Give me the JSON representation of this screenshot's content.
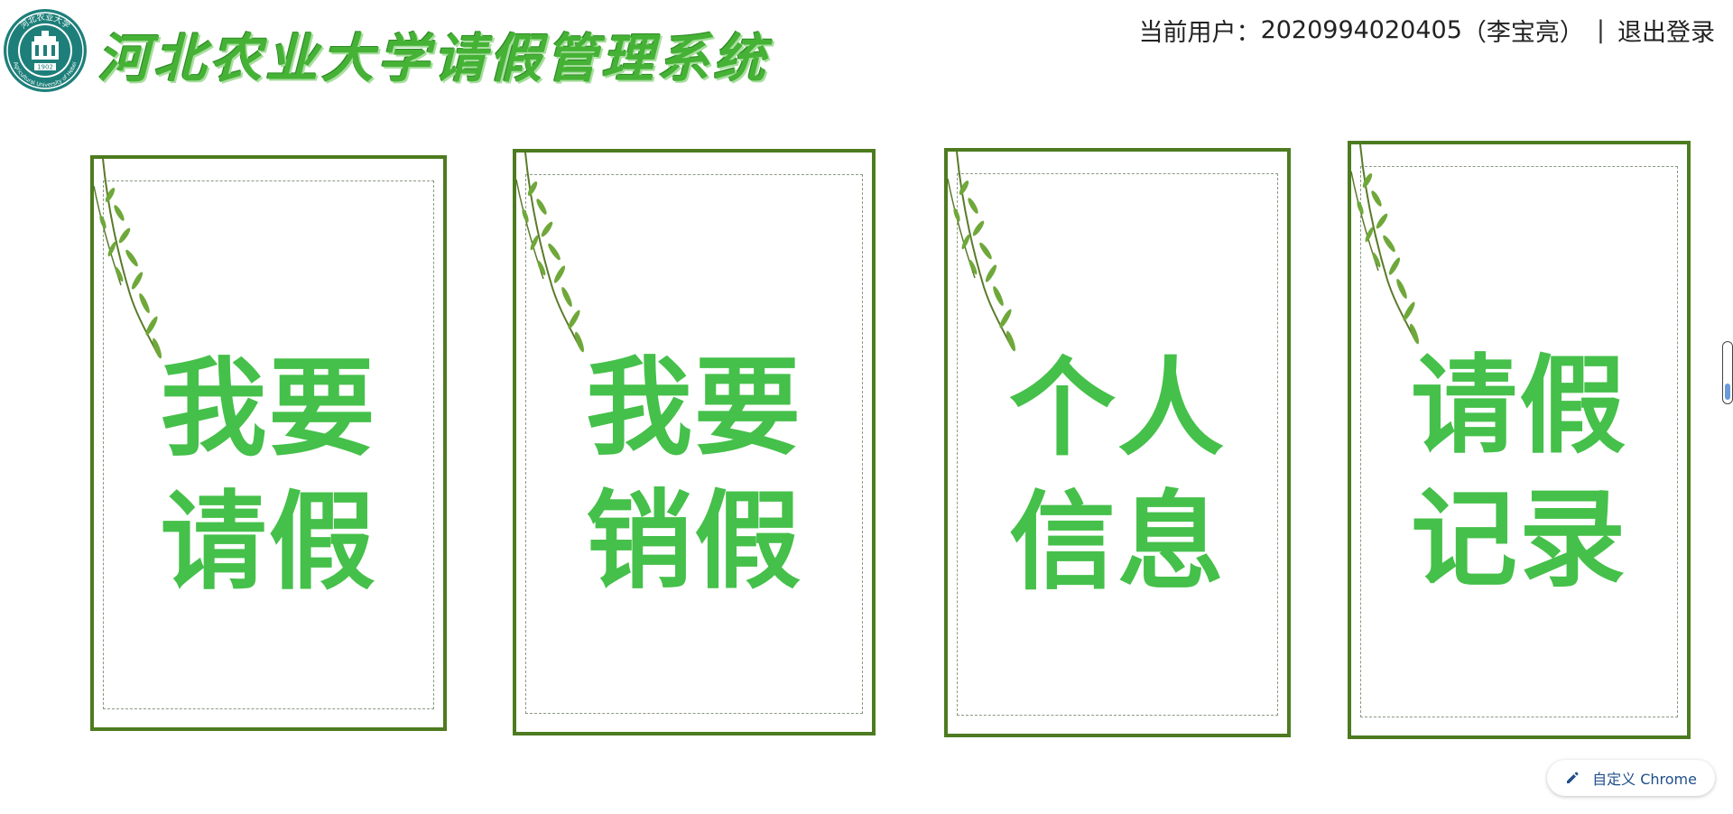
{
  "header": {
    "logo_text_top": "河北农业大学",
    "logo_text_bottom": "Agricultural University of Hebei",
    "logo_year": "1902",
    "site_title": "河北农业大学请假管理系统",
    "user_prefix": "当前用户：",
    "user_id": "2020994020405",
    "user_name": "（李宝亮）",
    "separator": "|",
    "logout_label": "退出登录"
  },
  "cards": [
    {
      "line1": "我要",
      "line2": "请假"
    },
    {
      "line1": "我要",
      "line2": "销假"
    },
    {
      "line1": "个人",
      "line2": "信息"
    },
    {
      "line1": "请假",
      "line2": "记录"
    }
  ],
  "customize_chrome": {
    "label": "自定义 Chrome"
  },
  "colors": {
    "title_green": "#45b236",
    "card_text_green": "#45c04a",
    "card_border": "#4d7b20",
    "logo_teal": "#1e7f7a"
  },
  "icons": {
    "logo": "university-seal-icon",
    "willow": "willow-branch-icon",
    "customize": "pencil-icon"
  }
}
